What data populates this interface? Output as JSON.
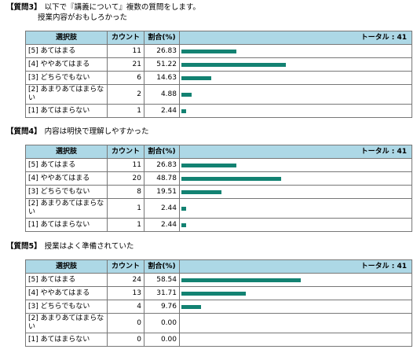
{
  "headers": {
    "choice": "選択肢",
    "count": "カウント",
    "ratio": "割合(%)",
    "total_prefix": "トータル : "
  },
  "questions": [
    {
      "id": "【質問3】",
      "text": "以下で『講義について』複数の質問をします。",
      "subtext": "授業内容がおもしろかった",
      "total": "41",
      "rows": [
        {
          "label": "[5] あてはまる",
          "count": "11",
          "pct": "26.83",
          "value": 26.83
        },
        {
          "label": "[4] ややあてはまる",
          "count": "21",
          "pct": "51.22",
          "value": 51.22
        },
        {
          "label": "[3] どちらでもない",
          "count": "6",
          "pct": "14.63",
          "value": 14.63
        },
        {
          "label": "[2] あまりあてはまらない",
          "count": "2",
          "pct": "4.88",
          "value": 4.88
        },
        {
          "label": "[1] あてはまらない",
          "count": "1",
          "pct": "2.44",
          "value": 2.44
        }
      ]
    },
    {
      "id": "【質問4】",
      "text": "内容は明快で理解しやすかった",
      "subtext": "",
      "total": "41",
      "rows": [
        {
          "label": "[5] あてはまる",
          "count": "11",
          "pct": "26.83",
          "value": 26.83
        },
        {
          "label": "[4] ややあてはまる",
          "count": "20",
          "pct": "48.78",
          "value": 48.78
        },
        {
          "label": "[3] どちらでもない",
          "count": "8",
          "pct": "19.51",
          "value": 19.51
        },
        {
          "label": "[2] あまりあてはまらない",
          "count": "1",
          "pct": "2.44",
          "value": 2.44
        },
        {
          "label": "[1] あてはまらない",
          "count": "1",
          "pct": "2.44",
          "value": 2.44
        }
      ]
    },
    {
      "id": "【質問5】",
      "text": "授業はよく準備されていた",
      "subtext": "",
      "total": "41",
      "rows": [
        {
          "label": "[5] あてはまる",
          "count": "24",
          "pct": "58.54",
          "value": 58.54
        },
        {
          "label": "[4] ややあてはまる",
          "count": "13",
          "pct": "31.71",
          "value": 31.71
        },
        {
          "label": "[3] どちらでもない",
          "count": "4",
          "pct": "9.76",
          "value": 9.76
        },
        {
          "label": "[2] あまりあてはまらない",
          "count": "0",
          "pct": "0.00",
          "value": 0
        },
        {
          "label": "[1] あてはまらない",
          "count": "0",
          "pct": "0.00",
          "value": 0
        }
      ]
    }
  ],
  "colors": {
    "header_bg": "#add8e6",
    "bar": "#138272"
  }
}
